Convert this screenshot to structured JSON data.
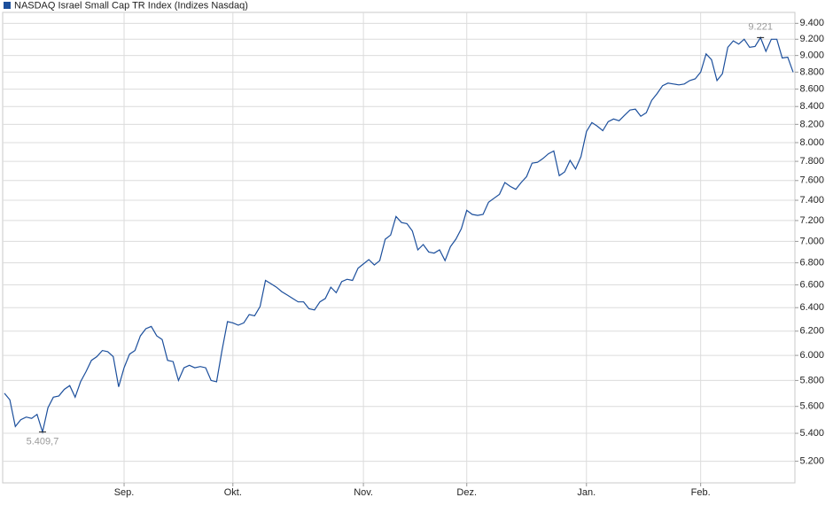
{
  "chart_data": {
    "type": "line",
    "log_scale": true,
    "grid": true,
    "legend_position": "top-left",
    "series": [
      {
        "name": "NASDAQ Israel Small Cap TR Index  (Indizes Nasdaq)",
        "color": "#1c4f9c",
        "values": [
          5700,
          5650,
          5450,
          5500,
          5520,
          5510,
          5540,
          5409.7,
          5590,
          5670,
          5680,
          5730,
          5760,
          5670,
          5790,
          5870,
          5960,
          5990,
          6040,
          6030,
          5990,
          5750,
          5900,
          6010,
          6040,
          6160,
          6220,
          6240,
          6160,
          6130,
          5960,
          5950,
          5800,
          5900,
          5920,
          5900,
          5910,
          5900,
          5800,
          5790,
          6040,
          6280,
          6270,
          6250,
          6270,
          6340,
          6330,
          6410,
          6640,
          6610,
          6580,
          6540,
          6510,
          6480,
          6450,
          6450,
          6390,
          6380,
          6450,
          6480,
          6580,
          6530,
          6630,
          6650,
          6640,
          6750,
          6790,
          6830,
          6780,
          6820,
          7020,
          7060,
          7240,
          7180,
          7170,
          7100,
          6920,
          6970,
          6900,
          6890,
          6920,
          6820,
          6950,
          7020,
          7120,
          7300,
          7260,
          7250,
          7260,
          7380,
          7420,
          7460,
          7580,
          7540,
          7510,
          7580,
          7640,
          7780,
          7790,
          7830,
          7880,
          7910,
          7650,
          7690,
          7810,
          7720,
          7850,
          8120,
          8220,
          8180,
          8130,
          8230,
          8260,
          8240,
          8300,
          8360,
          8370,
          8290,
          8330,
          8470,
          8550,
          8640,
          8670,
          8660,
          8650,
          8660,
          8700,
          8720,
          8800,
          9020,
          8950,
          8700,
          8780,
          9100,
          9180,
          9140,
          9200,
          9100,
          9110,
          9221,
          9050,
          9200,
          9200,
          8970,
          8980,
          8800
        ]
      }
    ],
    "categories": [
      null,
      null,
      null,
      null,
      null,
      null,
      null,
      null,
      null,
      null,
      null,
      null,
      null,
      null,
      null,
      null,
      null,
      null,
      null,
      null,
      null,
      null,
      "Sep.",
      null,
      null,
      null,
      null,
      null,
      null,
      null,
      null,
      null,
      null,
      null,
      null,
      null,
      null,
      null,
      null,
      null,
      null,
      null,
      "Okt.",
      null,
      null,
      null,
      null,
      null,
      null,
      null,
      null,
      null,
      null,
      null,
      null,
      null,
      null,
      null,
      null,
      null,
      null,
      null,
      null,
      null,
      null,
      null,
      "Nov.",
      null,
      null,
      null,
      null,
      null,
      null,
      null,
      null,
      null,
      null,
      null,
      null,
      null,
      null,
      null,
      null,
      null,
      null,
      "Dez.",
      null,
      null,
      null,
      null,
      null,
      null,
      null,
      null,
      null,
      null,
      null,
      null,
      null,
      null,
      null,
      null,
      null,
      null,
      null,
      null,
      null,
      "Jan.",
      null,
      null,
      null,
      null,
      null,
      null,
      null,
      null,
      null,
      null,
      null,
      null,
      null,
      null,
      null,
      null,
      null,
      null,
      null,
      null,
      "Feb.",
      null,
      null,
      null,
      null,
      null,
      null,
      null,
      null,
      null,
      null,
      null,
      null,
      null,
      null,
      null,
      null,
      null
    ],
    "ylim": [
      5050,
      9540
    ],
    "yticks": [
      {
        "value": 5200,
        "label": "5.200"
      },
      {
        "value": 5400,
        "label": "5.400"
      },
      {
        "value": 5600,
        "label": "5.600"
      },
      {
        "value": 5800,
        "label": "5.800"
      },
      {
        "value": 6000,
        "label": "6.000"
      },
      {
        "value": 6200,
        "label": "6.200"
      },
      {
        "value": 6400,
        "label": "6.400"
      },
      {
        "value": 6600,
        "label": "6.600"
      },
      {
        "value": 6800,
        "label": "6.800"
      },
      {
        "value": 7000,
        "label": "7.000"
      },
      {
        "value": 7200,
        "label": "7.200"
      },
      {
        "value": 7400,
        "label": "7.400"
      },
      {
        "value": 7600,
        "label": "7.600"
      },
      {
        "value": 7800,
        "label": "7.800"
      },
      {
        "value": 8000,
        "label": "8.000"
      },
      {
        "value": 8200,
        "label": "8.200"
      },
      {
        "value": 8400,
        "label": "8.400"
      },
      {
        "value": 8600,
        "label": "8.600"
      },
      {
        "value": 8800,
        "label": "8.800"
      },
      {
        "value": 9000,
        "label": "9.000"
      },
      {
        "value": 9200,
        "label": "9.200"
      },
      {
        "value": 9400,
        "label": "9.400"
      }
    ],
    "annotations": [
      {
        "label": "9.221",
        "value": 9221
      },
      {
        "label": "5.409,7",
        "value": 5409.7
      }
    ]
  }
}
